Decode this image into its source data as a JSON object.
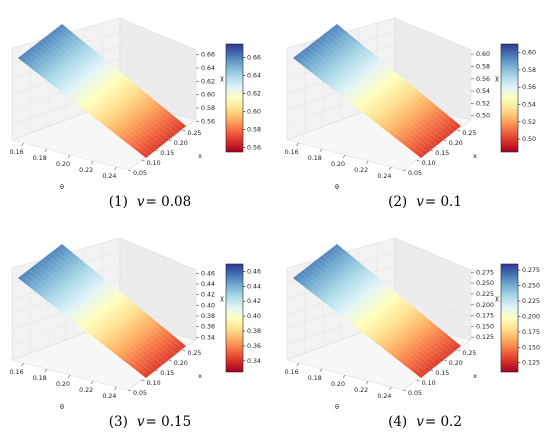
{
  "colors": {
    "colormap": "RdYlBu",
    "low": "#d7191c",
    "mid": "#ffffbf",
    "high": "#2c56a6"
  },
  "chart_data": [
    {
      "type": "surface3d",
      "caption": {
        "num": "(1)",
        "var": "v",
        "eq": "= 0.08"
      },
      "xlabel": "θ",
      "ylabel": "x",
      "zlabel": "χ",
      "theta_range": [
        0.15,
        0.25
      ],
      "x_range": [
        0.05,
        0.3
      ],
      "theta_ticks": [
        "0.16",
        "0.18",
        "0.20",
        "0.22",
        "0.24"
      ],
      "x_ticks": [
        "0.05",
        "0.10",
        "0.15",
        "0.20",
        "0.25"
      ],
      "z_range": [
        0.55,
        0.67
      ],
      "z_ticks": [
        "0.56",
        "0.58",
        "0.60",
        "0.62",
        "0.64",
        "0.66"
      ],
      "colorbar_range": [
        0.555,
        0.675
      ],
      "colorbar_ticks": [
        "0.56",
        "0.58",
        "0.60",
        "0.62",
        "0.64",
        "0.66"
      ]
    },
    {
      "type": "surface3d",
      "caption": {
        "num": "(2)",
        "var": "v",
        "eq": "= 0.1"
      },
      "xlabel": "θ",
      "ylabel": "x",
      "zlabel": "χ",
      "theta_range": [
        0.15,
        0.25
      ],
      "x_range": [
        0.05,
        0.3
      ],
      "theta_ticks": [
        "0.16",
        "0.18",
        "0.20",
        "0.22",
        "0.24"
      ],
      "x_ticks": [
        "0.05",
        "0.10",
        "0.15",
        "0.20",
        "0.25"
      ],
      "z_range": [
        0.48,
        0.61
      ],
      "z_ticks": [
        "0.50",
        "0.52",
        "0.54",
        "0.56",
        "0.58",
        "0.60"
      ],
      "colorbar_range": [
        0.485,
        0.61
      ],
      "colorbar_ticks": [
        "0.50",
        "0.52",
        "0.54",
        "0.56",
        "0.58",
        "0.60"
      ]
    },
    {
      "type": "surface3d",
      "caption": {
        "num": "(3)",
        "var": "v",
        "eq": "= 0.15"
      },
      "xlabel": "θ",
      "ylabel": "x",
      "zlabel": "χ",
      "theta_range": [
        0.15,
        0.25
      ],
      "x_range": [
        0.05,
        0.3
      ],
      "theta_ticks": [
        "0.16",
        "0.18",
        "0.20",
        "0.22",
        "0.24"
      ],
      "x_ticks": [
        "0.05",
        "0.10",
        "0.15",
        "0.20",
        "0.25"
      ],
      "z_range": [
        0.32,
        0.47
      ],
      "z_ticks": [
        "0.34",
        "0.36",
        "0.38",
        "0.40",
        "0.42",
        "0.44",
        "0.46"
      ],
      "colorbar_range": [
        0.325,
        0.47
      ],
      "colorbar_ticks": [
        "0.34",
        "0.36",
        "0.38",
        "0.40",
        "0.42",
        "0.44",
        "0.46"
      ]
    },
    {
      "type": "surface3d",
      "caption": {
        "num": "(4)",
        "var": "v",
        "eq": "= 0.2"
      },
      "xlabel": "θ",
      "ylabel": "x",
      "zlabel": "χ",
      "theta_range": [
        0.15,
        0.25
      ],
      "x_range": [
        0.05,
        0.3
      ],
      "theta_ticks": [
        "0.16",
        "0.18",
        "0.20",
        "0.22",
        "0.24"
      ],
      "x_ticks": [
        "0.05",
        "0.10",
        "0.15",
        "0.20",
        "0.25"
      ],
      "z_range": [
        0.1,
        0.285
      ],
      "z_ticks": [
        "0.125",
        "0.150",
        "0.175",
        "0.200",
        "0.225",
        "0.250",
        "0.275"
      ],
      "colorbar_range": [
        0.11,
        0.285
      ],
      "colorbar_ticks": [
        "0.125",
        "0.150",
        "0.175",
        "0.200",
        "0.225",
        "0.250",
        "0.275"
      ]
    }
  ]
}
